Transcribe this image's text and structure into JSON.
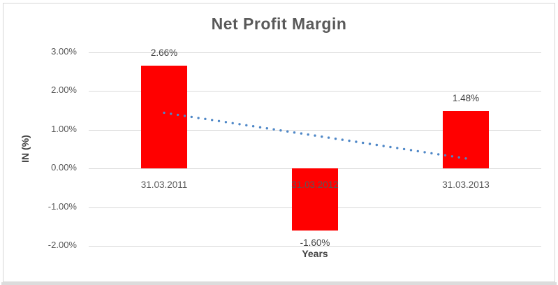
{
  "chart_data": {
    "type": "bar",
    "title": "Net Profit Margin",
    "xlabel": "Years",
    "ylabel": "IN (%)",
    "categories": [
      "31.03.2011",
      "31.03.2012",
      "31.03.2013"
    ],
    "values": [
      2.66,
      -1.6,
      1.48
    ],
    "data_labels": [
      "2.66%",
      "-1.60%",
      "1.48%"
    ],
    "y_ticks": [
      {
        "value": 3,
        "label": "3.00%"
      },
      {
        "value": 2,
        "label": "2.00%"
      },
      {
        "value": 1,
        "label": "1.00%"
      },
      {
        "value": 0,
        "label": "0.00%"
      },
      {
        "value": -1,
        "label": "-1.00%"
      },
      {
        "value": -2,
        "label": "-2.00%"
      }
    ],
    "ylim": [
      -2,
      3
    ],
    "grid": true,
    "legend": false,
    "trendline": {
      "type": "linear",
      "style": "dotted",
      "start_value": 1.44,
      "end_value": 0.26
    },
    "colors": {
      "bar": "#ff0000",
      "trendline": "#4e87c7",
      "gridline": "#d9d9d9",
      "title_text": "#595959",
      "tick_text": "#595959",
      "data_label_text": "#404040",
      "axis_title_text": "#404040",
      "frame_border": "#d6d6d6"
    }
  }
}
